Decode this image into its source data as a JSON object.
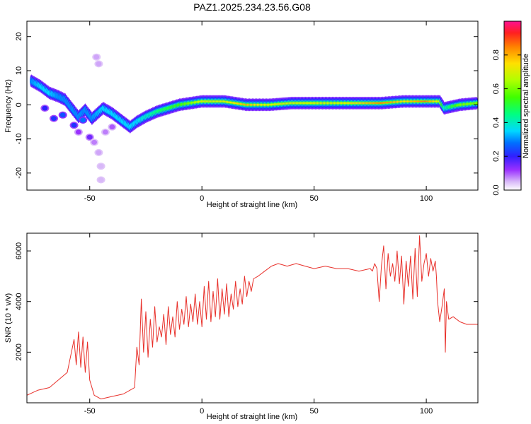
{
  "chart_data": [
    {
      "type": "heatmap",
      "title": "PAZ1.2025.234.23.56.G08",
      "xlabel": "Height of straight line (km)",
      "ylabel": "Frequency (Hz)",
      "xlim": [
        -78,
        123
      ],
      "ylim": [
        -25,
        24.5
      ],
      "xticks": [
        -50,
        0,
        50,
        100
      ],
      "xtick_labels": [
        "-50",
        "0",
        "50",
        "100"
      ],
      "yticks": [
        -20,
        -10,
        0,
        10,
        20
      ],
      "ytick_labels": [
        "-20",
        "-10",
        "0",
        "10",
        "20"
      ],
      "colorbar": {
        "label": "Normalized spectral amplitude",
        "range": [
          0,
          1
        ],
        "ticks": [
          0.0,
          0.2,
          0.4,
          0.6,
          0.8
        ],
        "tick_labels": [
          "0.0",
          "0.2",
          "0.4",
          "0.6",
          "0.8"
        ]
      },
      "ridge": [
        {
          "x": -76,
          "f": 7.0,
          "a": 0.3
        },
        {
          "x": -72,
          "f": 5.5,
          "a": 0.35
        },
        {
          "x": -68,
          "f": 3.5,
          "a": 0.35
        },
        {
          "x": -64,
          "f": 2.5,
          "a": 0.3
        },
        {
          "x": -61,
          "f": 1.5,
          "a": 0.3
        },
        {
          "x": -58,
          "f": -1.0,
          "a": 0.3
        },
        {
          "x": -55,
          "f": -3.5,
          "a": 0.3
        },
        {
          "x": -52,
          "f": -1.5,
          "a": 0.3
        },
        {
          "x": -49,
          "f": -4.0,
          "a": 0.3
        },
        {
          "x": -44,
          "f": -1.0,
          "a": 0.35
        },
        {
          "x": -40,
          "f": -2.5,
          "a": 0.35
        },
        {
          "x": -36,
          "f": -4.5,
          "a": 0.35
        },
        {
          "x": -32,
          "f": -6.5,
          "a": 0.35
        },
        {
          "x": -29,
          "f": -5.0,
          "a": 0.35
        },
        {
          "x": -25,
          "f": -3.5,
          "a": 0.4
        },
        {
          "x": -20,
          "f": -2.0,
          "a": 0.45
        },
        {
          "x": -15,
          "f": -1.0,
          "a": 0.5
        },
        {
          "x": -10,
          "f": 0.0,
          "a": 0.55
        },
        {
          "x": -5,
          "f": 0.5,
          "a": 0.6
        },
        {
          "x": 0,
          "f": 1.0,
          "a": 0.7
        },
        {
          "x": 5,
          "f": 1.0,
          "a": 0.7
        },
        {
          "x": 10,
          "f": 1.0,
          "a": 0.7
        },
        {
          "x": 20,
          "f": 0.0,
          "a": 0.8
        },
        {
          "x": 30,
          "f": 0.0,
          "a": 0.7
        },
        {
          "x": 40,
          "f": 0.5,
          "a": 0.7
        },
        {
          "x": 50,
          "f": 0.5,
          "a": 0.7
        },
        {
          "x": 60,
          "f": 0.5,
          "a": 0.7
        },
        {
          "x": 70,
          "f": 0.5,
          "a": 0.75
        },
        {
          "x": 80,
          "f": 0.5,
          "a": 0.85
        },
        {
          "x": 90,
          "f": 1.0,
          "a": 0.75
        },
        {
          "x": 100,
          "f": 1.0,
          "a": 0.85
        },
        {
          "x": 106,
          "f": 1.0,
          "a": 0.7
        },
        {
          "x": 108,
          "f": -1.0,
          "a": 0.4
        },
        {
          "x": 115,
          "f": 0.0,
          "a": 0.6
        },
        {
          "x": 123,
          "f": 0.5,
          "a": 0.6
        }
      ],
      "scatter_blobs": [
        {
          "x": -70,
          "f": -1.0,
          "a": 0.2
        },
        {
          "x": -66,
          "f": -4.0,
          "a": 0.22
        },
        {
          "x": -62,
          "f": -3.0,
          "a": 0.25
        },
        {
          "x": -57,
          "f": -6.0,
          "a": 0.22
        },
        {
          "x": -53,
          "f": -4.5,
          "a": 0.28
        },
        {
          "x": -50,
          "f": -9.5,
          "a": 0.15
        },
        {
          "x": -55,
          "f": -8.0,
          "a": 0.12
        },
        {
          "x": -47,
          "f": 14.0,
          "a": 0.06
        },
        {
          "x": -46,
          "f": 12.0,
          "a": 0.06
        },
        {
          "x": -46,
          "f": -14.0,
          "a": 0.06
        },
        {
          "x": -45,
          "f": -18.0,
          "a": 0.05
        },
        {
          "x": -45,
          "f": -22.0,
          "a": 0.05
        },
        {
          "x": -48,
          "f": -11.0,
          "a": 0.08
        },
        {
          "x": -43,
          "f": -8.0,
          "a": 0.08
        },
        {
          "x": -40,
          "f": -6.5,
          "a": 0.1
        }
      ]
    },
    {
      "type": "line",
      "xlabel": "Height of straight line (km)",
      "ylabel": "SNR (10 * v/v)",
      "xlim": [
        -78,
        123
      ],
      "ylim": [
        0,
        6700
      ],
      "xticks": [
        -50,
        0,
        50,
        100
      ],
      "xtick_labels": [
        "-50",
        "0",
        "50",
        "100"
      ],
      "yticks": [
        2000,
        4000,
        6000
      ],
      "ytick_labels": [
        "2000",
        "4000",
        "6000"
      ],
      "line_color": "#e8302a",
      "series": [
        {
          "name": "SNR",
          "x": [
            -78,
            -73,
            -68,
            -64,
            -60,
            -57,
            -56,
            -55,
            -54,
            -53,
            -52,
            -51,
            -50,
            -48,
            -45,
            -40,
            -35,
            -32,
            -30,
            -29,
            -28,
            -27,
            -26,
            -25,
            -24,
            -23,
            -22,
            -21,
            -20,
            -19,
            -18,
            -17,
            -16,
            -15,
            -14,
            -13,
            -12,
            -11,
            -10,
            -9,
            -8,
            -7,
            -6,
            -5,
            -4,
            -3,
            -2,
            -1,
            0,
            1,
            2,
            3,
            4,
            5,
            6,
            7,
            8,
            9,
            10,
            11,
            12,
            13,
            14,
            15,
            16,
            17,
            18,
            19,
            20,
            21,
            22,
            23,
            25,
            28,
            31,
            34,
            38,
            42,
            46,
            50,
            55,
            60,
            65,
            70,
            75,
            76,
            77,
            78,
            79,
            80,
            81,
            82,
            83,
            84,
            85,
            86,
            87,
            88,
            89,
            90,
            91,
            92,
            93,
            94,
            95,
            96,
            97,
            98,
            99,
            100,
            101,
            102,
            103,
            104,
            104.5,
            105,
            106,
            107,
            108,
            108.5,
            109,
            110,
            112,
            115,
            118,
            123
          ],
          "y": [
            300,
            500,
            600,
            900,
            1200,
            2500,
            1500,
            2800,
            1400,
            2600,
            1200,
            2400,
            900,
            300,
            150,
            250,
            350,
            500,
            600,
            2200,
            1500,
            4100,
            2000,
            3600,
            1800,
            3300,
            2200,
            3800,
            2400,
            3000,
            2600,
            3500,
            2300,
            3800,
            2700,
            3400,
            2600,
            4000,
            2900,
            3700,
            3100,
            4200,
            3000,
            3900,
            3200,
            4300,
            3100,
            4000,
            3000,
            4600,
            3300,
            4800,
            3200,
            4400,
            3400,
            4900,
            3300,
            4500,
            3500,
            4700,
            3400,
            4300,
            3700,
            4800,
            3800,
            4500,
            3900,
            5000,
            4200,
            4800,
            4400,
            4900,
            5000,
            5200,
            5400,
            5500,
            5400,
            5500,
            5400,
            5300,
            5400,
            5300,
            5300,
            5200,
            5300,
            5200,
            5500,
            5300,
            4000,
            5400,
            6200,
            4500,
            5900,
            5000,
            5500,
            4800,
            6000,
            4700,
            5800,
            3900,
            5600,
            4600,
            5800,
            4100,
            6100,
            4200,
            6600,
            4800,
            5500,
            5900,
            5000,
            5700,
            5200,
            5600,
            5000,
            4000,
            3200,
            3800,
            4500,
            2000,
            4000,
            3300,
            3400,
            3200,
            3100,
            3100
          ]
        }
      ]
    }
  ]
}
